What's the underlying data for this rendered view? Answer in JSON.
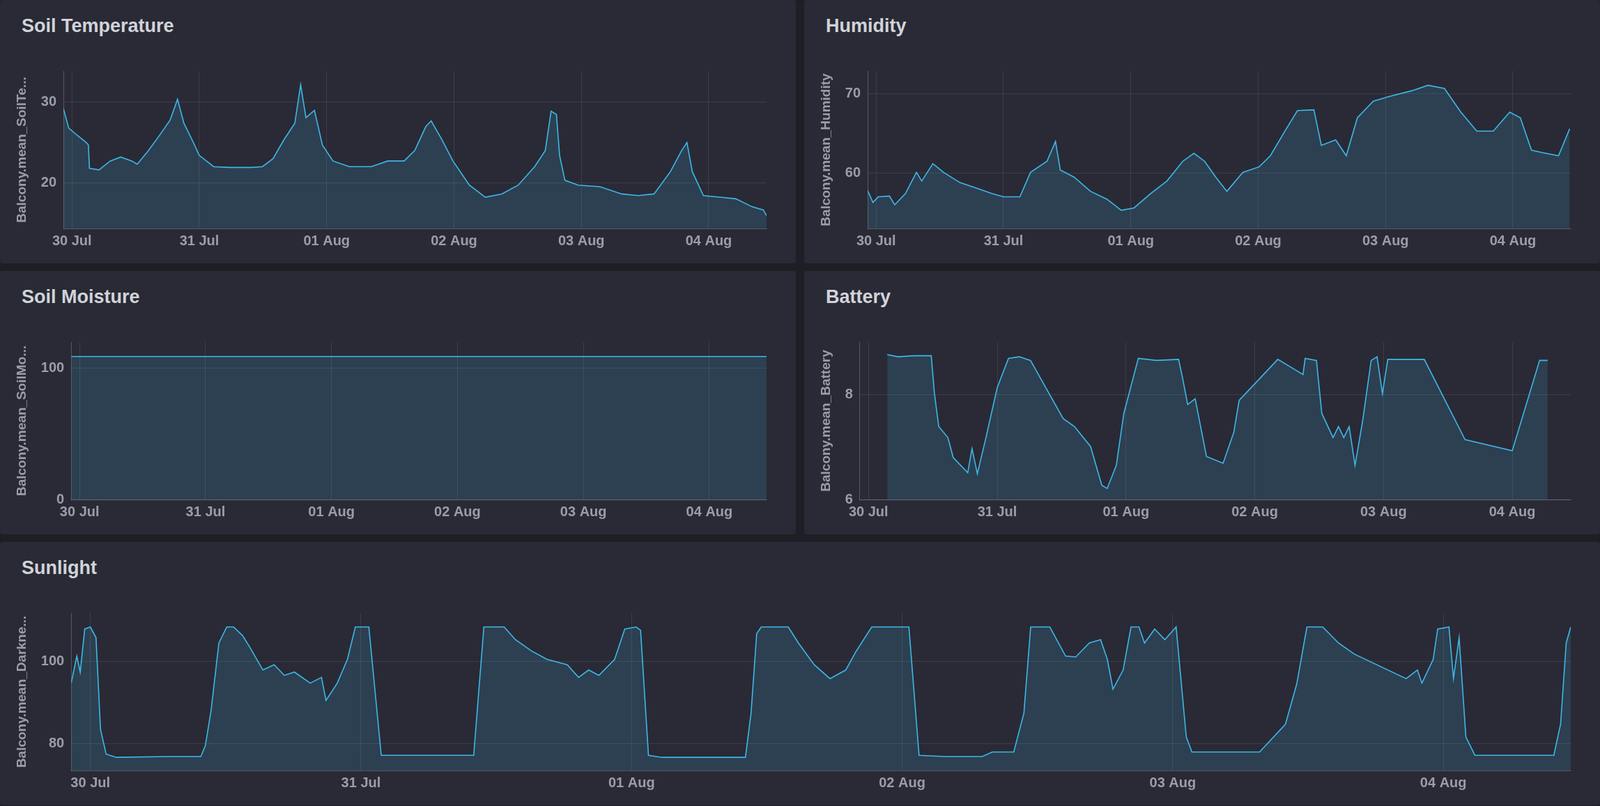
{
  "chart_data": [
    {
      "type": "area",
      "title": "Soil Temperature",
      "y_label": "Balcony.mean_SoilTe...",
      "color": "#3fb7e9",
      "grid": true,
      "x": [
        -1.6,
        -0.6,
        1,
        2.7,
        3.1,
        3.3,
        5.1,
        7.2,
        9.2,
        11.3,
        12.3,
        14.4,
        16.4,
        18.5,
        19.9,
        21.1,
        22.6,
        24,
        26.7,
        29.7,
        33.8,
        35.9,
        37.9,
        40,
        42,
        43.1,
        44.1,
        45.7,
        47.2,
        49.2,
        52.3,
        56.4,
        59.5,
        62.6,
        64.6,
        66.7,
        67.7,
        69.7,
        71.8,
        74.9,
        77.9,
        81,
        84.1,
        87.2,
        89.2,
        90.3,
        91.3,
        91.9,
        92.9,
        95.4,
        99.5,
        103.6,
        106.7,
        109.7,
        112.8,
        114.9,
        115.9,
        116.9,
        119,
        122.1,
        125.1,
        128.2,
        130.3,
        130.9
      ],
      "values": [
        29.2,
        26.8,
        25.9,
        25,
        24.7,
        21.8,
        21.6,
        22.7,
        23.2,
        22.7,
        22.3,
        24,
        25.8,
        27.8,
        30.4,
        27.4,
        25.4,
        23.4,
        22,
        21.9,
        21.9,
        22,
        23,
        25.4,
        27.4,
        32.2,
        28.1,
        29,
        24.7,
        22.7,
        22,
        22,
        22.7,
        22.7,
        24,
        27,
        27.7,
        25.4,
        22.7,
        19.7,
        18.2,
        18.6,
        19.7,
        22,
        24,
        28.9,
        28.5,
        23.4,
        20.3,
        19.7,
        19.5,
        18.6,
        18.4,
        18.6,
        21.4,
        24,
        25,
        21.4,
        18.4,
        18.2,
        18,
        17,
        16.6,
        15.9
      ],
      "xlim": [
        -1.6,
        130.9
      ],
      "xticks": [
        {
          "value": 0,
          "label": "30 Jul"
        },
        {
          "value": 24,
          "label": "31 Jul"
        },
        {
          "value": 48,
          "label": "01 Aug"
        },
        {
          "value": 72,
          "label": "02 Aug"
        },
        {
          "value": 96,
          "label": "03 Aug"
        },
        {
          "value": 120,
          "label": "04 Aug"
        }
      ],
      "ylim": [
        14.3,
        33.9
      ],
      "yticks": [
        20,
        30
      ]
    },
    {
      "type": "area",
      "title": "Humidity",
      "y_label": "Balcony.mean_Humidity",
      "color": "#3fb7e9",
      "grid": true,
      "x": [
        -1.6,
        -0.6,
        0.4,
        2.5,
        3.5,
        5.5,
        7.6,
        8.6,
        10.7,
        12.7,
        15.8,
        18.9,
        21.9,
        24,
        27.1,
        29.1,
        32.2,
        33.8,
        34.7,
        37.3,
        40.4,
        43.5,
        46.2,
        48.6,
        51.7,
        54.8,
        57.8,
        59.9,
        61.9,
        64,
        66.1,
        69.1,
        72.2,
        74.3,
        77.3,
        79.4,
        82.5,
        83.9,
        86.6,
        88.6,
        90.7,
        93.7,
        96.8,
        100.9,
        104,
        107.1,
        110.2,
        113.2,
        116.3,
        119.4,
        121.4,
        123.5,
        125.5,
        128.6,
        130.7
      ],
      "values": [
        57.8,
        56.3,
        57,
        57.1,
        56,
        57.4,
        60.1,
        59,
        61.2,
        60.1,
        58.8,
        58.1,
        57.4,
        57,
        57,
        60.1,
        61.5,
        64,
        60.4,
        59.5,
        57.7,
        56.7,
        55.3,
        55.6,
        57.4,
        59,
        61.5,
        62.5,
        61.5,
        59.5,
        57.7,
        60.1,
        60.8,
        62.2,
        65.6,
        67.9,
        68,
        63.5,
        64.2,
        62.2,
        67,
        69.1,
        69.7,
        70.4,
        71.1,
        70.7,
        67.7,
        65.3,
        65.3,
        67.7,
        67,
        62.9,
        62.6,
        62.2,
        65.6
      ],
      "xlim": [
        -1.6,
        130.9
      ],
      "xticks": [
        {
          "value": 0,
          "label": "30 Jul"
        },
        {
          "value": 24,
          "label": "31 Jul"
        },
        {
          "value": 48,
          "label": "01 Aug"
        },
        {
          "value": 72,
          "label": "02 Aug"
        },
        {
          "value": 96,
          "label": "03 Aug"
        },
        {
          "value": 120,
          "label": "04 Aug"
        }
      ],
      "ylim": [
        53,
        72.9
      ],
      "yticks": [
        60,
        70
      ]
    },
    {
      "type": "area",
      "title": "Soil Moisture",
      "y_label": "Balcony.mean_SoilMo...",
      "color": "#3fb7e9",
      "grid": true,
      "x": [
        -1.6,
        24,
        48,
        72,
        96,
        120,
        130.9
      ],
      "values": [
        109,
        109,
        109,
        109,
        109,
        109,
        109
      ],
      "xlim": [
        -1.6,
        130.9
      ],
      "xticks": [
        {
          "value": 0,
          "label": "30 Jul"
        },
        {
          "value": 24,
          "label": "31 Jul"
        },
        {
          "value": 48,
          "label": "01 Aug"
        },
        {
          "value": 72,
          "label": "02 Aug"
        },
        {
          "value": 96,
          "label": "03 Aug"
        },
        {
          "value": 120,
          "label": "04 Aug"
        }
      ],
      "ylim": [
        0,
        120
      ],
      "yticks": [
        0,
        100
      ]
    },
    {
      "type": "area",
      "title": "Battery",
      "y_label": "Balcony.mean_Battery",
      "color": "#3fb7e9",
      "grid": true,
      "x": [
        3.5,
        5.5,
        8.6,
        11.7,
        12.3,
        13.1,
        14.8,
        15.8,
        18.5,
        19.3,
        20.3,
        21.9,
        24,
        26.1,
        28.1,
        30.2,
        36.3,
        38.4,
        41.4,
        43.5,
        44.5,
        46.2,
        47.6,
        50.3,
        53.7,
        57.8,
        58.5,
        59.5,
        60.9,
        63,
        66.1,
        68.1,
        69.1,
        76.3,
        79.4,
        81,
        81.4,
        83.5,
        84.5,
        86.6,
        87.6,
        88.6,
        89.6,
        90.7,
        92.1,
        93.7,
        94.8,
        95.8,
        96.8,
        103.6,
        111.2,
        120,
        125.1,
        126.6
      ],
      "values": [
        8.76,
        8.72,
        8.74,
        8.74,
        8.02,
        7.39,
        7.18,
        6.8,
        6.51,
        6.97,
        6.49,
        7.18,
        8.13,
        8.69,
        8.72,
        8.65,
        7.54,
        7.39,
        7.01,
        6.27,
        6.21,
        6.65,
        7.64,
        8.69,
        8.65,
        8.67,
        8.34,
        7.81,
        7.92,
        6.82,
        6.69,
        7.28,
        7.89,
        8.67,
        8.48,
        8.38,
        8.69,
        8.65,
        7.64,
        7.18,
        7.39,
        7.18,
        7.39,
        6.65,
        7.49,
        8.65,
        8.72,
        8.02,
        8.67,
        8.67,
        7.14,
        6.93,
        8.65,
        8.65
      ],
      "xlim": [
        -1.6,
        130.9
      ],
      "xticks": [
        {
          "value": 0,
          "label": "30 Jul"
        },
        {
          "value": 24,
          "label": "31 Jul"
        },
        {
          "value": 48,
          "label": "01 Aug"
        },
        {
          "value": 72,
          "label": "02 Aug"
        },
        {
          "value": 96,
          "label": "03 Aug"
        },
        {
          "value": 120,
          "label": "04 Aug"
        }
      ],
      "ylim": [
        6,
        9
      ],
      "yticks": [
        6,
        8
      ]
    },
    {
      "type": "area",
      "title": "Sunlight",
      "y_label": "Balcony.mean_Darkne...",
      "color": "#3fb7e9",
      "grid": true,
      "x": [
        -1.7,
        -1.2,
        -0.9,
        -0.5,
        0,
        0.5,
        0.9,
        1.4,
        2.3,
        7,
        9.8,
        10.2,
        10.7,
        11.4,
        12.1,
        12.7,
        13.5,
        14.2,
        15.3,
        16.3,
        17.2,
        18.1,
        19.5,
        20.5,
        20.9,
        21.9,
        22.8,
        23.5,
        24.7,
        25.8,
        27.4,
        34,
        34.9,
        36.7,
        37.7,
        39.1,
        40.5,
        42.3,
        43.3,
        44.2,
        45.1,
        46.5,
        47.4,
        48.4,
        48.8,
        49.5,
        50.7,
        58.1,
        58.6,
        59.1,
        59.5,
        61.9,
        62.8,
        64.2,
        65.6,
        67,
        67.9,
        69.3,
        72.6,
        73.5,
        75.8,
        79.1,
        80,
        81.9,
        82.8,
        83.4,
        85.1,
        86.5,
        87.4,
        88.6,
        89.6,
        90.2,
        90.7,
        91.6,
        92.3,
        93,
        93.5,
        94.4,
        95.3,
        96.3,
        97.2,
        97.7,
        103.7,
        106,
        107,
        107.9,
        109.3,
        110.7,
        112.1,
        116.7,
        117.7,
        118.1,
        119.1,
        119.5,
        120.5,
        120.9,
        121.4,
        122,
        122.8,
        129.8,
        130.4,
        130.9,
        131.3
      ],
      "values": [
        94.7,
        101.3,
        97.4,
        107.9,
        108.4,
        105.8,
        83.4,
        77.4,
        76.6,
        76.8,
        76.8,
        79.5,
        87.9,
        104.5,
        108.4,
        108.4,
        106.3,
        103.2,
        97.9,
        99.2,
        96.6,
        97.4,
        94.7,
        96.1,
        90.5,
        94.7,
        100.5,
        108.4,
        108.4,
        77.1,
        77.1,
        77.1,
        108.4,
        108.4,
        105.3,
        102.6,
        100.5,
        99.2,
        96.1,
        97.9,
        96.6,
        100.5,
        107.9,
        108.4,
        107.6,
        77.1,
        76.6,
        76.6,
        87.4,
        106.8,
        108.4,
        108.4,
        104.5,
        99.2,
        95.8,
        97.9,
        102.4,
        108.4,
        108.4,
        77.1,
        76.8,
        76.8,
        77.9,
        77.9,
        87.4,
        108.4,
        108.4,
        101.3,
        101.1,
        104.5,
        105.3,
        100.5,
        93.2,
        97.9,
        108.4,
        108.4,
        104.5,
        107.9,
        105.3,
        108.4,
        81.6,
        77.9,
        77.9,
        84.7,
        94.5,
        108.4,
        108.4,
        104.5,
        101.8,
        95.8,
        97.9,
        94.7,
        100.5,
        107.9,
        108.4,
        95.8,
        105.8,
        81.6,
        77.1,
        77.1,
        84.7,
        104.5,
        108.4
      ],
      "xlim": [
        -1.7,
        131.3
      ],
      "xticks": [
        {
          "value": 0,
          "label": "30 Jul"
        },
        {
          "value": 24,
          "label": "31 Jul"
        },
        {
          "value": 48,
          "label": "01 Aug"
        },
        {
          "value": 72,
          "label": "02 Aug"
        },
        {
          "value": 96,
          "label": "03 Aug"
        },
        {
          "value": 120,
          "label": "04 Aug"
        }
      ],
      "ylim": [
        73.4,
        111.8
      ],
      "yticks": [
        80,
        100
      ]
    }
  ]
}
